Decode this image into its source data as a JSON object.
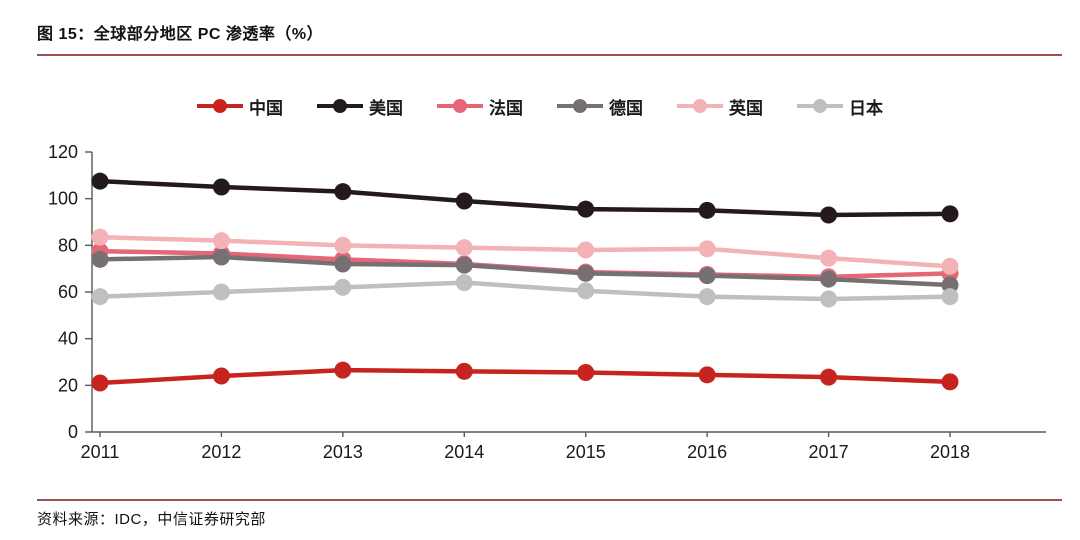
{
  "figure": {
    "title": "图 15：全球部分地区 PC 渗透率（%）",
    "source": "资料来源：IDC，中信证券研究部"
  },
  "colors": {
    "rule": "#9c4f55",
    "axis": "#595959",
    "tick_label": "#1a1a1a"
  },
  "chart_data": {
    "type": "line",
    "title": "全球部分地区 PC 渗透率（%）",
    "categories": [
      "2011",
      "2012",
      "2013",
      "2014",
      "2015",
      "2016",
      "2017",
      "2018"
    ],
    "series": [
      {
        "key": "china",
        "name": "中国",
        "color": "#c8241f",
        "values": [
          21,
          24,
          26.5,
          26,
          25.5,
          24.5,
          23.5,
          21.5
        ]
      },
      {
        "key": "usa",
        "name": "美国",
        "color": "#241a1c",
        "values": [
          107.5,
          105,
          103,
          99,
          95.5,
          95,
          93,
          93.5
        ]
      },
      {
        "key": "france",
        "name": "法国",
        "color": "#e56676",
        "values": [
          77.5,
          76.5,
          74,
          72,
          68.5,
          67.5,
          66.5,
          68
        ]
      },
      {
        "key": "germany",
        "name": "德国",
        "color": "#767072",
        "values": [
          74,
          75,
          72,
          71.5,
          68,
          67,
          65.5,
          63
        ]
      },
      {
        "key": "uk",
        "name": "英国",
        "color": "#f3b2b5",
        "values": [
          83.5,
          82,
          80,
          79,
          78,
          78.5,
          74.5,
          71
        ]
      },
      {
        "key": "japan",
        "name": "日本",
        "color": "#bfbfbf",
        "values": [
          58,
          60,
          62,
          64,
          60.5,
          58,
          57,
          58
        ]
      }
    ],
    "xlabel": "",
    "ylabel": "",
    "ylim": [
      0,
      120
    ],
    "yticks": [
      0,
      20,
      40,
      60,
      80,
      100,
      120
    ],
    "grid": false,
    "legend_position": "top"
  }
}
